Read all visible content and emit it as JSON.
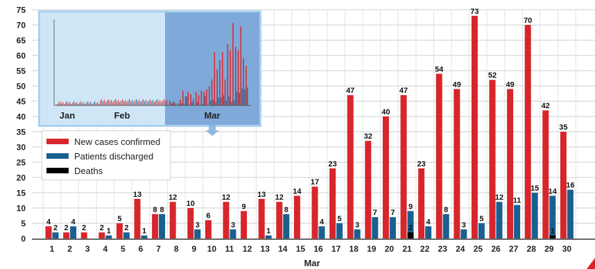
{
  "chart_data": {
    "type": "bar",
    "xlabel": "Mar",
    "ylim": [
      0,
      75
    ],
    "yticks": [
      0,
      5,
      10,
      15,
      20,
      25,
      30,
      35,
      40,
      45,
      50,
      55,
      60,
      65,
      70,
      75
    ],
    "categories": [
      "1",
      "2",
      "3",
      "4",
      "5",
      "6",
      "7",
      "8",
      "9",
      "10",
      "11",
      "12",
      "13",
      "14",
      "15",
      "16",
      "17",
      "18",
      "19",
      "20",
      "21",
      "22",
      "23",
      "24",
      "25",
      "26",
      "27",
      "28",
      "29",
      "30"
    ],
    "series": [
      {
        "name": "New cases confirmed",
        "color": "#d7262b",
        "values": [
          4,
          2,
          2,
          2,
          5,
          13,
          8,
          12,
          10,
          6,
          12,
          9,
          13,
          12,
          14,
          17,
          23,
          47,
          32,
          40,
          47,
          23,
          54,
          49,
          73,
          52,
          49,
          70,
          42,
          35
        ]
      },
      {
        "name": "Patients discharged",
        "color": "#1a5f91",
        "values": [
          2,
          4,
          0,
          1,
          2,
          1,
          8,
          0,
          3,
          0,
          3,
          0,
          1,
          8,
          0,
          4,
          5,
          3,
          7,
          7,
          9,
          4,
          8,
          3,
          5,
          12,
          11,
          15,
          14,
          16
        ]
      },
      {
        "name": "Deaths",
        "color": "#000000",
        "values": [
          0,
          0,
          0,
          0,
          0,
          0,
          0,
          0,
          0,
          0,
          0,
          0,
          0,
          0,
          0,
          0,
          0,
          0,
          0,
          0,
          2,
          0,
          0,
          0,
          0,
          0,
          0,
          0,
          1,
          0
        ]
      }
    ],
    "grid": true,
    "legend_position": "left",
    "inset": {
      "type": "bar",
      "month_labels": [
        "Jan",
        "Feb",
        "Mar"
      ],
      "highlighted_month": "Mar"
    }
  },
  "legend": {
    "items": [
      {
        "label": "New cases confirmed",
        "color": "#d7262b"
      },
      {
        "label": "Patients discharged",
        "color": "#1a5f91"
      },
      {
        "label": "Deaths",
        "color": "#000000"
      }
    ]
  },
  "colors": {
    "grid": "#c8cdd1",
    "inset_background": "#cfe6f7",
    "inset_highlight": "#7fa9d8",
    "inset_border": "#a9d0ef",
    "accent": "#d7262b"
  }
}
